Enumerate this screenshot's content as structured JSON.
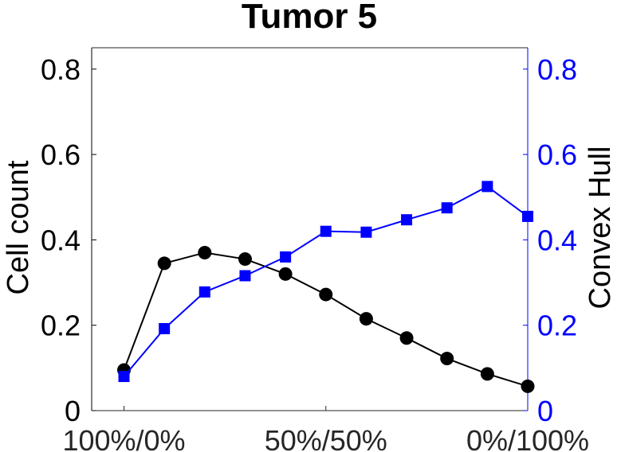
{
  "chart_data": {
    "type": "line",
    "title": "Tumor 5",
    "x": [
      0,
      1,
      2,
      3,
      4,
      5,
      6,
      7,
      8,
      9,
      10
    ],
    "x_tick_positions": [
      0,
      5,
      10
    ],
    "x_tick_labels": [
      "100%/0%",
      "50%/50%",
      "0%/100%"
    ],
    "xlim": [
      -0.8,
      10
    ],
    "left_axis": {
      "label": "Cell count",
      "color": "#000000",
      "ylim": [
        0,
        0.85
      ],
      "ticks": [
        0,
        0.2,
        0.4,
        0.6,
        0.8
      ],
      "tick_labels": [
        "0",
        "0.2",
        "0.4",
        "0.6",
        "0.8"
      ]
    },
    "right_axis": {
      "label": "Convex Hull",
      "color": "#0000ff",
      "ylim": [
        0,
        0.85
      ],
      "ticks": [
        0,
        0.2,
        0.4,
        0.6,
        0.8
      ],
      "tick_labels": [
        "0",
        "0.2",
        "0.4",
        "0.6",
        "0.8"
      ]
    },
    "series": [
      {
        "name": "Cell count",
        "axis": "left",
        "color": "#000000",
        "marker": "circle",
        "values": [
          0.095,
          0.345,
          0.37,
          0.355,
          0.32,
          0.272,
          0.215,
          0.17,
          0.122,
          0.086,
          0.057
        ]
      },
      {
        "name": "Convex Hull",
        "axis": "right",
        "color": "#0000ff",
        "marker": "square",
        "values": [
          0.08,
          0.192,
          0.278,
          0.316,
          0.36,
          0.42,
          0.418,
          0.447,
          0.475,
          0.525,
          0.455
        ]
      }
    ],
    "grid": false,
    "legend": "none"
  }
}
